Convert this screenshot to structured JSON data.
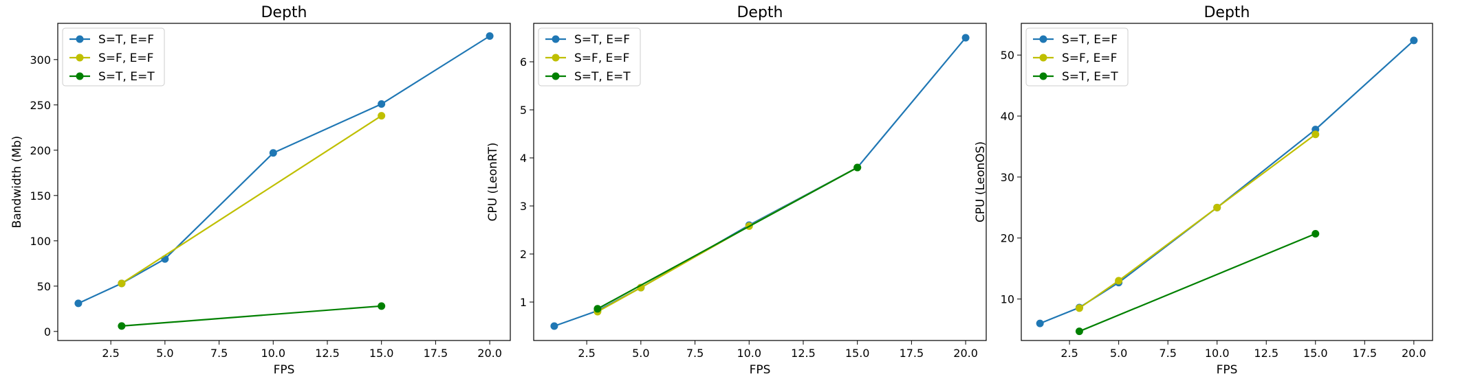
{
  "chart_data": [
    {
      "type": "line",
      "title": "Depth",
      "xlabel": "FPS",
      "ylabel": "Bandwidth (Mb)",
      "xlim": [
        0.05,
        20.95
      ],
      "ylim": [
        -10,
        340
      ],
      "xticks": [
        2.5,
        5.0,
        7.5,
        10.0,
        12.5,
        15.0,
        17.5,
        20.0
      ],
      "xtick_labels": [
        "2.5",
        "5.0",
        "7.5",
        "10.0",
        "12.5",
        "15.0",
        "17.5",
        "20.0"
      ],
      "yticks": [
        0,
        50,
        100,
        150,
        200,
        250,
        300
      ],
      "ytick_labels": [
        "0",
        "50",
        "100",
        "150",
        "200",
        "250",
        "300"
      ],
      "legend_position": "top-left",
      "series": [
        {
          "name": "S=T, E=F",
          "color": "#1f77b4",
          "x": [
            1,
            3,
            5,
            10,
            15,
            20
          ],
          "y": [
            31,
            53,
            80,
            197,
            251,
            326
          ]
        },
        {
          "name": "S=F, E=F",
          "color": "#bfbf00",
          "x": [
            3,
            15
          ],
          "y": [
            53,
            238
          ]
        },
        {
          "name": "S=T, E=T",
          "color": "#008000",
          "x": [
            3,
            15
          ],
          "y": [
            6,
            28
          ]
        }
      ]
    },
    {
      "type": "line",
      "title": "Depth",
      "xlabel": "FPS",
      "ylabel": "CPU (LeonRT)",
      "xlim": [
        0.05,
        20.95
      ],
      "ylim": [
        0.2,
        6.8
      ],
      "xticks": [
        2.5,
        5.0,
        7.5,
        10.0,
        12.5,
        15.0,
        17.5,
        20.0
      ],
      "xtick_labels": [
        "2.5",
        "5.0",
        "7.5",
        "10.0",
        "12.5",
        "15.0",
        "17.5",
        "20.0"
      ],
      "yticks": [
        1,
        2,
        3,
        4,
        5,
        6
      ],
      "ytick_labels": [
        "1",
        "2",
        "3",
        "4",
        "5",
        "6"
      ],
      "legend_position": "top-left",
      "series": [
        {
          "name": "S=T, E=F",
          "color": "#1f77b4",
          "x": [
            1,
            3,
            5,
            10,
            15,
            20
          ],
          "y": [
            0.5,
            0.82,
            1.3,
            2.6,
            3.8,
            6.5
          ]
        },
        {
          "name": "S=F, E=F",
          "color": "#bfbf00",
          "x": [
            3,
            5,
            10,
            15
          ],
          "y": [
            0.8,
            1.3,
            2.58,
            3.8
          ]
        },
        {
          "name": "S=T, E=T",
          "color": "#008000",
          "x": [
            3,
            15
          ],
          "y": [
            0.86,
            3.8
          ]
        }
      ]
    },
    {
      "type": "line",
      "title": "Depth",
      "xlabel": "FPS",
      "ylabel": "CPU (LeonOS)",
      "xlim": [
        0.05,
        20.95
      ],
      "ylim": [
        3.2,
        55.2
      ],
      "xticks": [
        2.5,
        5.0,
        7.5,
        10.0,
        12.5,
        15.0,
        17.5,
        20.0
      ],
      "xtick_labels": [
        "2.5",
        "5.0",
        "7.5",
        "10.0",
        "12.5",
        "15.0",
        "17.5",
        "20.0"
      ],
      "yticks": [
        10,
        20,
        30,
        40,
        50
      ],
      "ytick_labels": [
        "10",
        "20",
        "30",
        "40",
        "50"
      ],
      "legend_position": "top-left",
      "series": [
        {
          "name": "S=T, E=F",
          "color": "#1f77b4",
          "x": [
            1,
            3,
            5,
            10,
            15,
            20
          ],
          "y": [
            6,
            8.6,
            12.7,
            25,
            37.8,
            52.4
          ]
        },
        {
          "name": "S=F, E=F",
          "color": "#bfbf00",
          "x": [
            3,
            5,
            10,
            15
          ],
          "y": [
            8.5,
            13,
            25,
            37
          ]
        },
        {
          "name": "S=T, E=T",
          "color": "#008000",
          "x": [
            3,
            15
          ],
          "y": [
            4.7,
            20.7
          ]
        }
      ]
    }
  ]
}
